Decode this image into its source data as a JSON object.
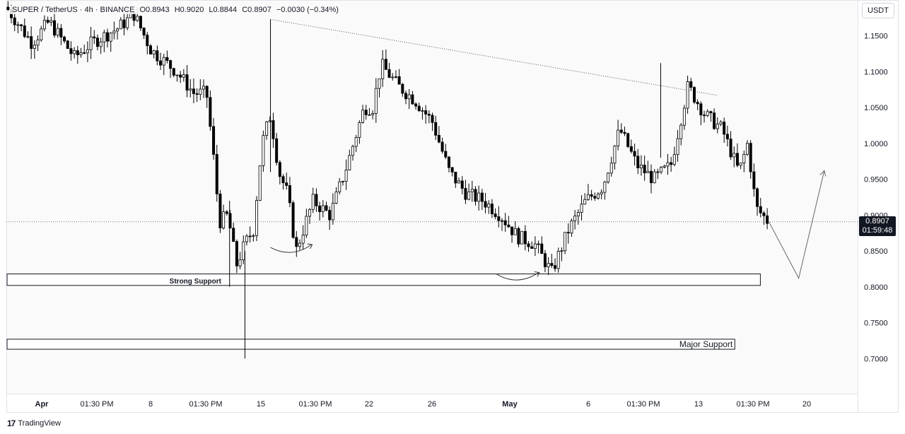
{
  "legend": {
    "symbol": "SUPER / TetherUS · 4h · BINANCE",
    "open": "O0.8943",
    "high": "H0.9020",
    "low": "L0.8844",
    "close": "C0.8907",
    "change": "−0.0030 (−0.34%)"
  },
  "currency": "USDT",
  "last_price": {
    "value": "0.8907",
    "countdown": "01:59:48"
  },
  "brand": {
    "logo_icon": "tradingview-logo-icon",
    "name": "TradingView"
  },
  "colors": {
    "up": "#ffffff",
    "down": "#000000",
    "wick": "#000000",
    "background": "#fafafa"
  },
  "chart_data": {
    "type": "candlestick",
    "grid": "off",
    "ylim": [
      0.65,
      1.2
    ],
    "y_ticks": [
      "1.1500",
      "1.1000",
      "1.0500",
      "1.0000",
      "0.9500",
      "0.9000",
      "0.8500",
      "0.8000",
      "0.7500",
      "0.7000"
    ],
    "x_tick_labels": [
      "Apr",
      "01:30 PM",
      "8",
      "01:30 PM",
      "15",
      "01:30 PM",
      "22",
      "26",
      "May",
      "6",
      "01:30 PM",
      "13",
      "01:30 PM",
      "20"
    ],
    "price_points": [
      [
        0.0,
        1.19
      ],
      [
        0.03,
        1.14
      ],
      [
        0.05,
        1.17
      ],
      [
        0.08,
        1.12
      ],
      [
        0.1,
        1.14
      ],
      [
        0.13,
        1.16
      ],
      [
        0.15,
        1.18
      ],
      [
        0.17,
        1.13
      ],
      [
        0.2,
        1.1
      ],
      [
        0.22,
        1.07
      ],
      [
        0.235,
        1.07
      ],
      [
        0.245,
        0.96
      ],
      [
        0.25,
        0.89
      ],
      [
        0.26,
        0.9
      ],
      [
        0.27,
        0.83
      ],
      [
        0.28,
        0.86
      ],
      [
        0.29,
        0.88
      ],
      [
        0.3,
        1.0
      ],
      [
        0.31,
        1.04
      ],
      [
        0.32,
        0.96
      ],
      [
        0.33,
        0.93
      ],
      [
        0.34,
        0.85
      ],
      [
        0.36,
        0.92
      ],
      [
        0.38,
        0.9
      ],
      [
        0.4,
        0.97
      ],
      [
        0.42,
        1.05
      ],
      [
        0.43,
        1.05
      ],
      [
        0.44,
        1.11
      ],
      [
        0.46,
        1.08
      ],
      [
        0.48,
        1.06
      ],
      [
        0.5,
        1.03
      ],
      [
        0.52,
        0.96
      ],
      [
        0.54,
        0.93
      ],
      [
        0.56,
        0.92
      ],
      [
        0.58,
        0.9
      ],
      [
        0.6,
        0.87
      ],
      [
        0.62,
        0.86
      ],
      [
        0.64,
        0.82
      ],
      [
        0.66,
        0.88
      ],
      [
        0.68,
        0.92
      ],
      [
        0.7,
        0.94
      ],
      [
        0.72,
        1.02
      ],
      [
        0.74,
        0.97
      ],
      [
        0.76,
        0.95
      ],
      [
        0.78,
        0.97
      ],
      [
        0.8,
        1.08
      ],
      [
        0.82,
        1.04
      ],
      [
        0.84,
        1.02
      ],
      [
        0.86,
        0.96
      ],
      [
        0.87,
        1.0
      ],
      [
        0.88,
        0.91
      ],
      [
        0.895,
        0.89
      ]
    ],
    "annotations": {
      "strong_support": {
        "label": "Strong Support",
        "range": [
          0.802,
          0.818
        ]
      },
      "major_support": {
        "label": "Major Support",
        "range": [
          0.713,
          0.727
        ]
      },
      "descending_trendline": {
        "from": [
          0.31,
          1.173
        ],
        "to": [
          0.835,
          1.067
        ]
      },
      "projection_path": [
        [
          0.895,
          0.8907
        ],
        [
          0.93,
          0.812
        ],
        [
          0.96,
          0.962
        ]
      ]
    }
  }
}
